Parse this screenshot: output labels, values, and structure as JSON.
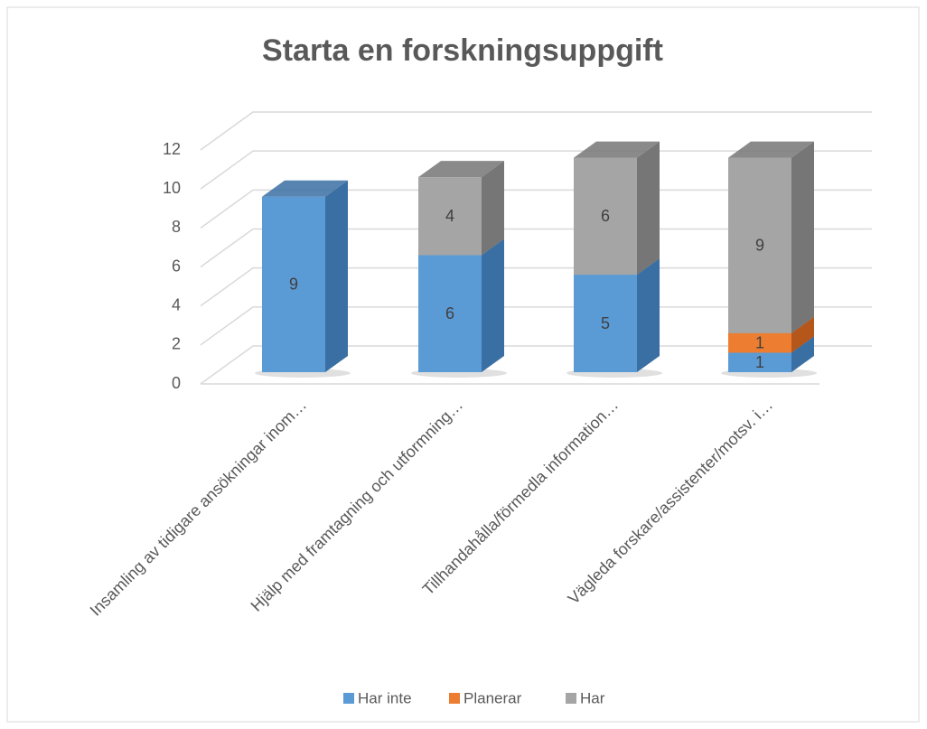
{
  "chart_data": {
    "type": "bar3d-stacked",
    "title": "Starta en forskningsuppgift",
    "categories": [
      "Insamling av tidigare ansökningar inom…",
      "Hjälp med framtagning och utformning…",
      "Tillhandahålla/förmedla information…",
      "Vägleda forskare/assistenter/motsv. i…"
    ],
    "series": [
      {
        "name": "Har inte",
        "color": "#5b9bd5",
        "side": "#3a6fa3",
        "values": [
          9,
          6,
          5,
          1
        ]
      },
      {
        "name": "Planerar",
        "color": "#ed7d31",
        "side": "#b5561a",
        "values": [
          0,
          0,
          0,
          1
        ]
      },
      {
        "name": "Har",
        "color": "#a5a5a5",
        "side": "#767676",
        "values": [
          0,
          4,
          6,
          9
        ]
      }
    ],
    "ylim": [
      0,
      12
    ],
    "yticks": [
      0,
      2,
      4,
      6,
      8,
      10,
      12
    ],
    "grid": true,
    "legend": "bottom"
  }
}
